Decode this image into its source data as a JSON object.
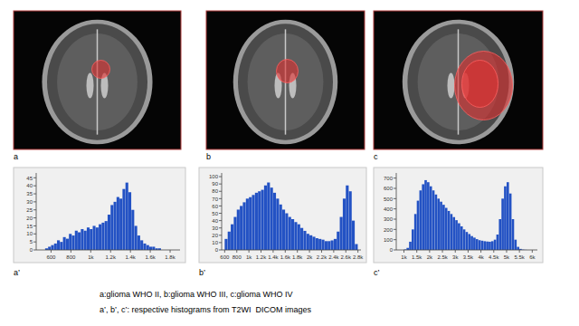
{
  "chart_data": [
    {
      "type": "histogram",
      "color": "#2352c4",
      "bins": [
        540,
        570,
        600,
        630,
        660,
        690,
        720,
        750,
        780,
        810,
        840,
        870,
        900,
        930,
        960,
        990,
        1020,
        1050,
        1080,
        1110,
        1140,
        1170,
        1200,
        1230,
        1260,
        1290,
        1320,
        1350,
        1380,
        1410,
        1440,
        1470,
        1500,
        1530,
        1560,
        1590,
        1620,
        1650,
        1680,
        1710,
        1740
      ],
      "values": [
        1,
        2,
        3,
        4,
        6,
        5,
        8,
        7,
        10,
        9,
        12,
        11,
        13,
        12,
        14,
        13,
        15,
        14,
        16,
        17,
        18,
        22,
        28,
        30,
        33,
        32,
        38,
        42,
        36,
        25,
        15,
        9,
        6,
        4,
        3,
        2,
        2,
        1,
        1,
        0
      ],
      "xlim": [
        450,
        1900
      ],
      "xticks": [
        600,
        {
          "value": 800,
          "label": "800"
        },
        {
          "value": 1000,
          "label": "1k"
        },
        {
          "value": 1200,
          "label": "1.2k"
        },
        {
          "value": 1400,
          "label": "1.4k"
        },
        {
          "value": 1600,
          "label": "1.6k"
        },
        {
          "value": 1800,
          "label": "1.8k"
        }
      ],
      "ylim": [
        0,
        48
      ],
      "yticks": [
        0,
        5,
        10,
        15,
        20,
        25,
        30,
        35,
        40,
        45
      ]
    },
    {
      "type": "histogram",
      "color": "#2352c4",
      "bins": [
        600,
        650,
        700,
        750,
        800,
        850,
        900,
        950,
        1000,
        1050,
        1100,
        1150,
        1200,
        1250,
        1300,
        1350,
        1400,
        1450,
        1500,
        1550,
        1600,
        1650,
        1700,
        1750,
        1800,
        1850,
        1900,
        1950,
        2000,
        2050,
        2100,
        2150,
        2200,
        2250,
        2300,
        2350,
        2400,
        2450,
        2500,
        2550,
        2600,
        2650,
        2700,
        2750,
        2800
      ],
      "values": [
        15,
        25,
        35,
        45,
        55,
        60,
        65,
        70,
        72,
        75,
        78,
        80,
        82,
        88,
        92,
        85,
        78,
        70,
        62,
        55,
        50,
        45,
        42,
        38,
        35,
        30,
        26,
        22,
        20,
        18,
        16,
        15,
        14,
        12,
        12,
        13,
        15,
        25,
        45,
        70,
        88,
        80,
        40,
        8
      ],
      "xlim": [
        550,
        2850
      ],
      "xticks": [
        600,
        800,
        {
          "value": 1000,
          "label": "1k"
        },
        {
          "value": 1200,
          "label": "1.2k"
        },
        {
          "value": 1400,
          "label": "1.4k"
        },
        {
          "value": 1600,
          "label": "1.6k"
        },
        {
          "value": 1800,
          "label": "1.8k"
        },
        {
          "value": 2000,
          "label": "2k"
        },
        {
          "value": 2200,
          "label": "2.2k"
        },
        {
          "value": 2400,
          "label": "2.4k"
        },
        {
          "value": 2600,
          "label": "2.6k"
        },
        {
          "value": 2800,
          "label": "2.8k"
        }
      ],
      "ylim": [
        0,
        105
      ],
      "yticks": [
        0,
        10,
        20,
        30,
        40,
        50,
        60,
        70,
        80,
        90,
        100
      ]
    },
    {
      "type": "histogram",
      "color": "#2352c4",
      "bins": [
        1000,
        1100,
        1200,
        1300,
        1400,
        1500,
        1600,
        1700,
        1800,
        1900,
        2000,
        2100,
        2200,
        2300,
        2400,
        2500,
        2600,
        2700,
        2800,
        2900,
        3000,
        3100,
        3200,
        3300,
        3400,
        3500,
        3600,
        3700,
        3800,
        3900,
        4000,
        4100,
        4200,
        4300,
        4400,
        4500,
        4600,
        4700,
        4800,
        4900,
        5000,
        5100,
        5200,
        5300,
        5400,
        5500,
        5600,
        5700,
        5800
      ],
      "values": [
        5,
        20,
        80,
        200,
        350,
        480,
        580,
        640,
        680,
        660,
        620,
        580,
        540,
        500,
        470,
        440,
        410,
        380,
        350,
        320,
        290,
        260,
        230,
        200,
        175,
        155,
        135,
        120,
        105,
        95,
        90,
        85,
        82,
        80,
        85,
        100,
        150,
        300,
        500,
        620,
        660,
        550,
        300,
        100,
        30,
        10,
        3,
        1
      ],
      "xlim": [
        700,
        6200
      ],
      "xticks": [
        {
          "value": 1000,
          "label": "1k"
        },
        {
          "value": 1500,
          "label": "1.5k"
        },
        {
          "value": 2000,
          "label": "2k"
        },
        {
          "value": 2500,
          "label": "2.5k"
        },
        {
          "value": 3000,
          "label": "3k"
        },
        {
          "value": 3500,
          "label": "3.5k"
        },
        {
          "value": 4000,
          "label": "4k"
        },
        {
          "value": 4500,
          "label": "4.5k"
        },
        {
          "value": 5000,
          "label": "5k"
        },
        {
          "value": 5500,
          "label": "5.5k"
        },
        {
          "value": 6000,
          "label": "6k"
        }
      ],
      "ylim": [
        0,
        750
      ],
      "yticks": [
        0,
        100,
        200,
        300,
        400,
        500,
        600,
        700
      ]
    }
  ],
  "figure": {
    "image_labels": [
      "a",
      "b",
      "c"
    ],
    "histogram_labels": [
      "a’",
      "b’",
      "c’"
    ],
    "caption": [
      "a:glioma WHO II, b:glioma WHO III, c:glioma WHO IV",
      "a’, b’, c’: respective histograms from T2WI  DICOM images"
    ]
  }
}
